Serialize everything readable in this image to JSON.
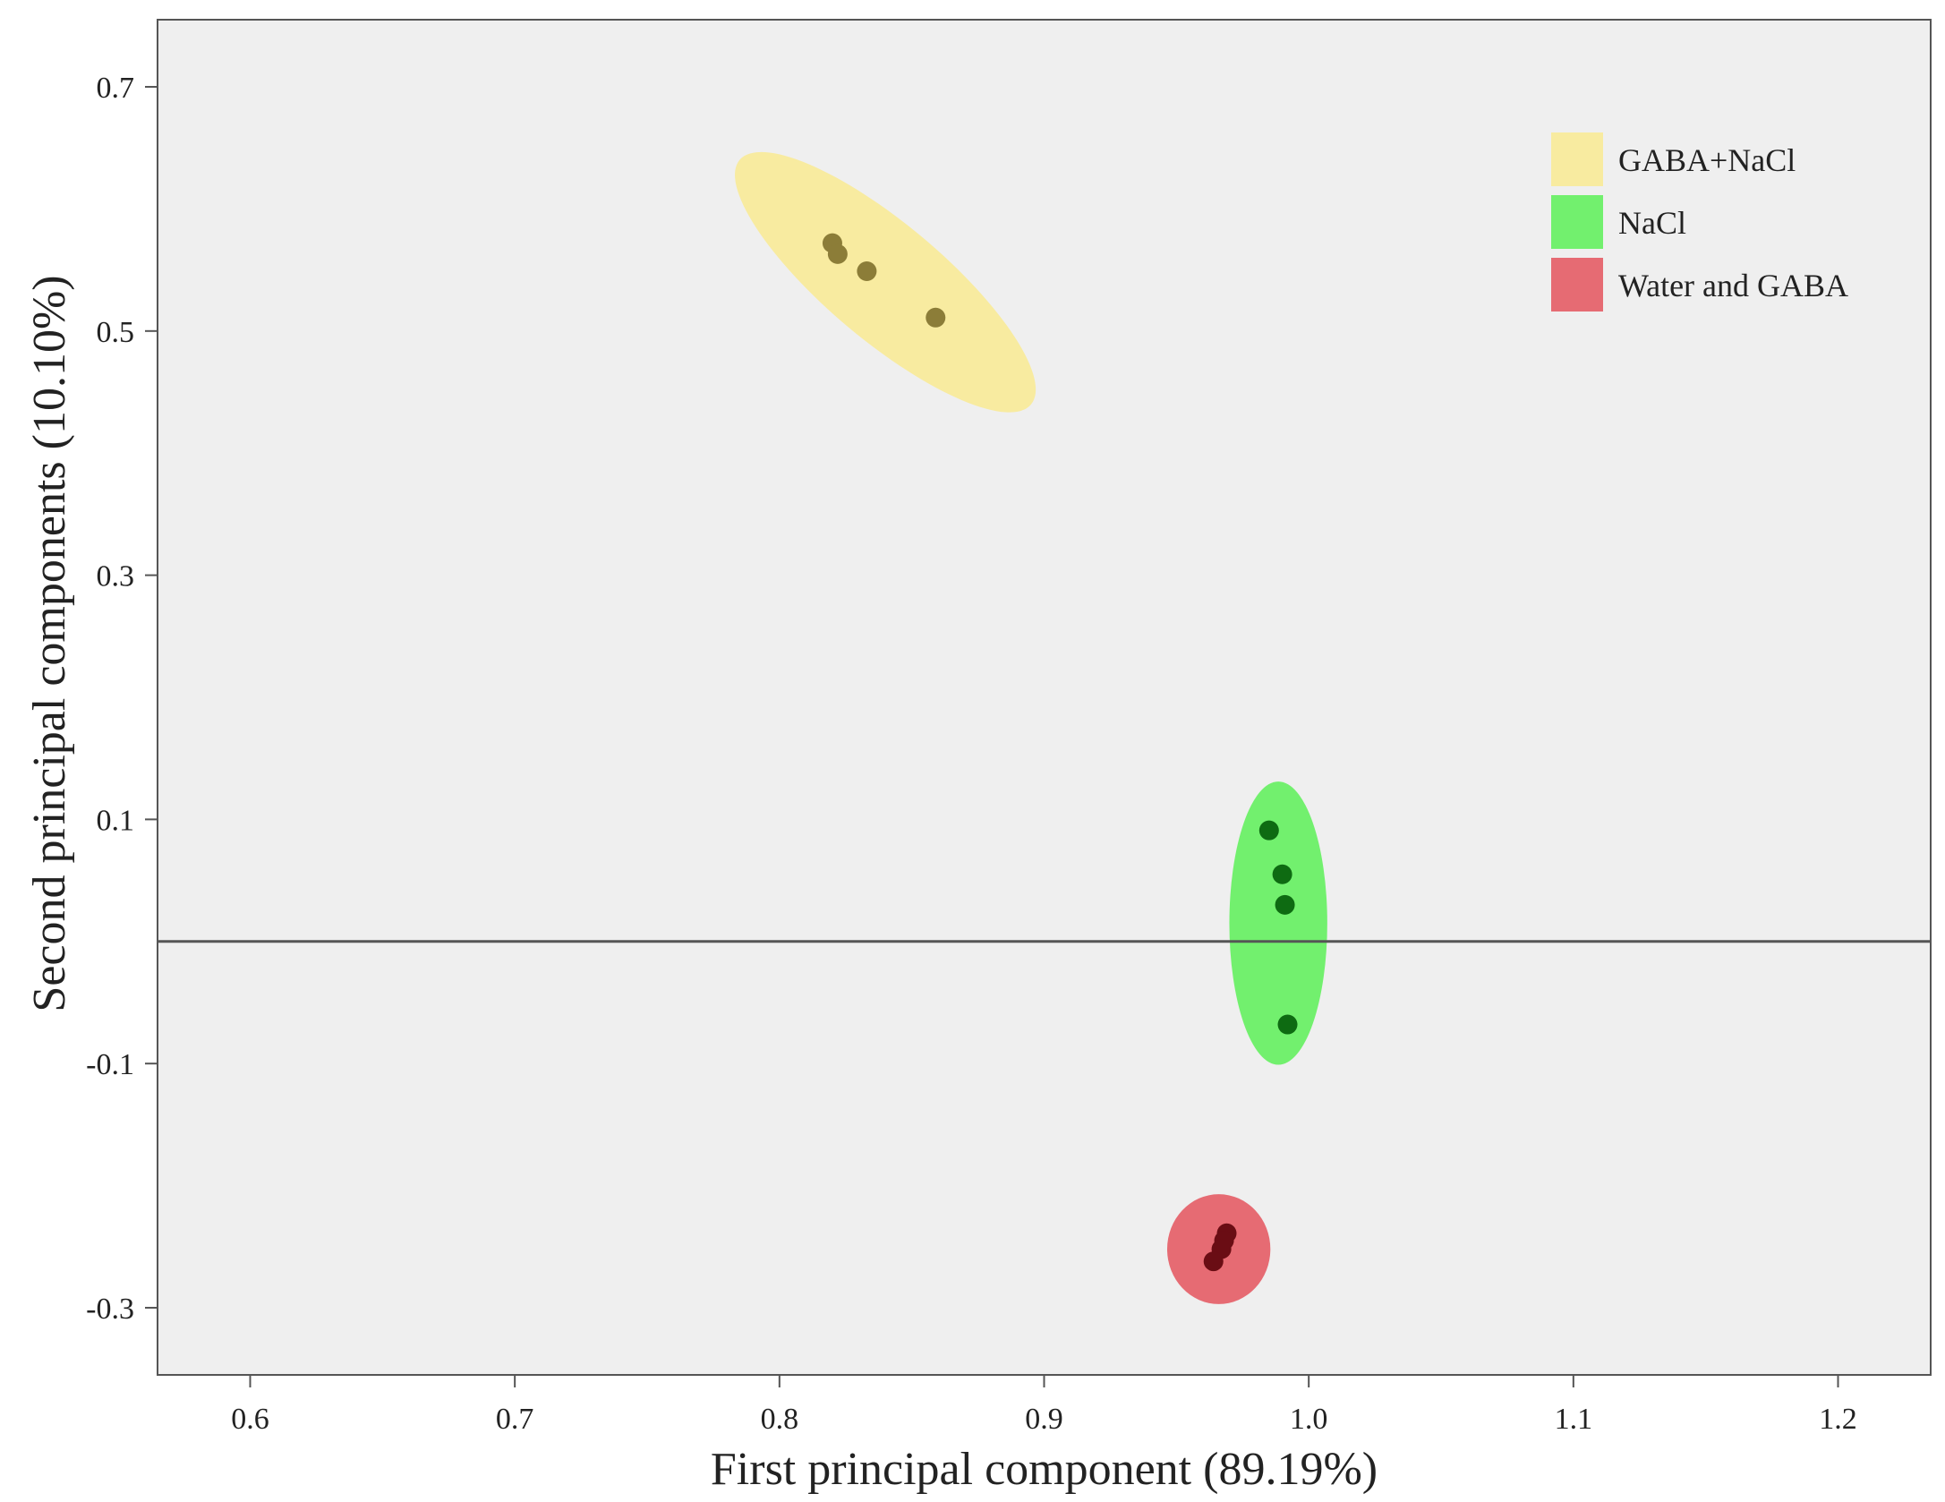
{
  "chart_data": {
    "type": "scatter",
    "title": "",
    "xlabel": "First principal component (89.19%)",
    "ylabel": "Second principal components (10.10%)",
    "xlim": [
      0.565,
      1.235
    ],
    "ylim": [
      -0.355,
      0.755
    ],
    "x_ticks": [
      "0.6",
      "0.7",
      "0.8",
      "0.9",
      "1.0",
      "1.1",
      "1.2"
    ],
    "x_tick_values": [
      0.6,
      0.7,
      0.8,
      0.9,
      1.0,
      1.1,
      1.2
    ],
    "y_ticks": [
      "0.7",
      "0.5",
      "0.3",
      "0.1",
      "-0.1",
      "-0.3"
    ],
    "y_tick_values": [
      0.7,
      0.5,
      0.3,
      0.1,
      -0.1,
      -0.3
    ],
    "reference_line_y": 0.0,
    "background": "#efefef",
    "legend_position": "top-right",
    "series": [
      {
        "name": "GABA+NaCl",
        "fill_color": "#f8eba0",
        "point_color": "#8c7d38",
        "ellipse": {
          "cx": 0.84,
          "cy": 0.54,
          "rx": 0.085,
          "ry": 0.022,
          "angle_deg": 37
        },
        "points": [
          [
            0.82,
            0.572
          ],
          [
            0.822,
            0.563
          ],
          [
            0.833,
            0.549
          ],
          [
            0.859,
            0.511
          ]
        ]
      },
      {
        "name": "NaCl",
        "fill_color": "#72f06e",
        "point_color": "#0e6b12",
        "ellipse": {
          "cx": 0.9885,
          "cy": 0.015,
          "rx": 0.0185,
          "ry": 0.116,
          "angle_deg": 0
        },
        "points": [
          [
            0.985,
            0.091
          ],
          [
            0.99,
            0.055
          ],
          [
            0.991,
            0.03
          ],
          [
            0.992,
            -0.068
          ]
        ]
      },
      {
        "name": "Water and GABA",
        "fill_color": "#e66b73",
        "point_color": "#6a0d14",
        "ellipse": {
          "cx": 0.966,
          "cy": -0.252,
          "rx": 0.0195,
          "ry": 0.045,
          "angle_deg": 0
        },
        "points": [
          [
            0.969,
            -0.239
          ],
          [
            0.968,
            -0.245
          ],
          [
            0.967,
            -0.252
          ],
          [
            0.964,
            -0.262
          ]
        ]
      }
    ]
  }
}
